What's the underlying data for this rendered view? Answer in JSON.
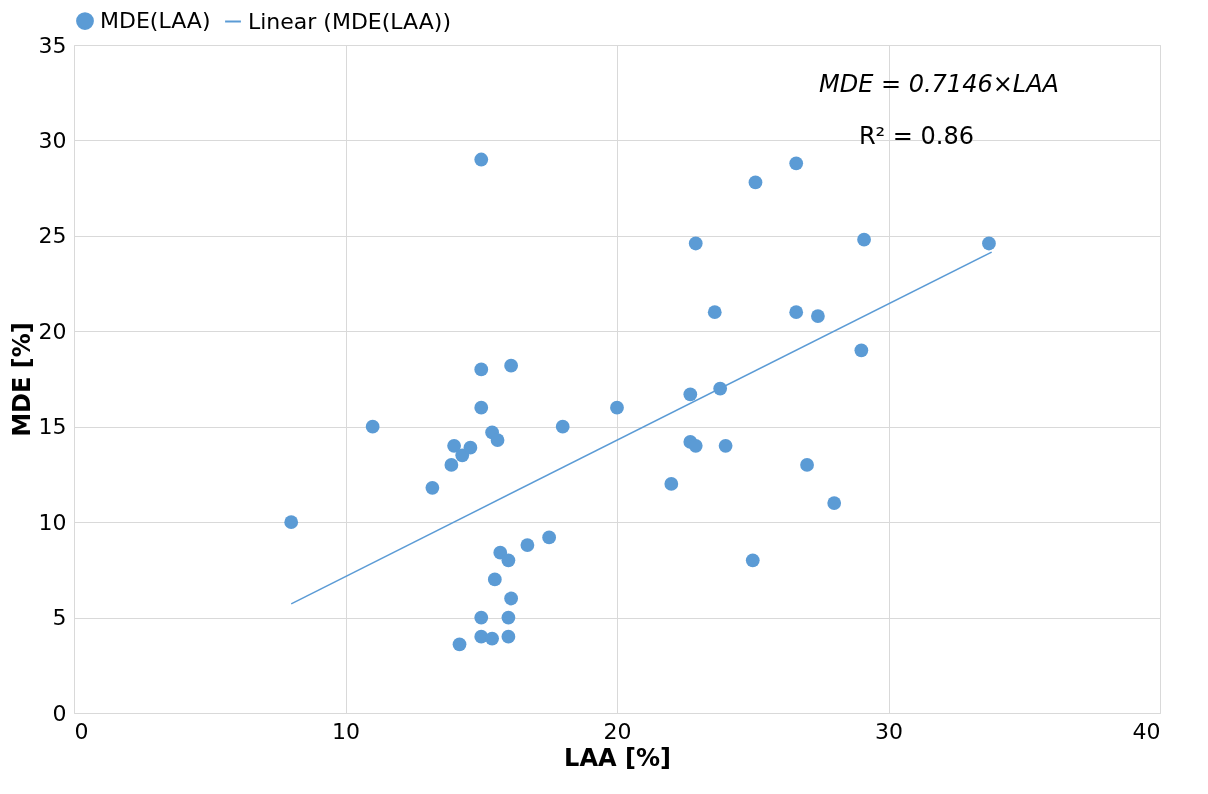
{
  "chart_data": {
    "type": "scatter",
    "xlabel": "LAA [%]",
    "ylabel": "MDE [%]",
    "xlim": [
      0,
      40
    ],
    "xticks": [
      0,
      10,
      20,
      30,
      40
    ],
    "ylim": [
      0,
      35
    ],
    "yticks": [
      0,
      5,
      10,
      15,
      20,
      25,
      30,
      35
    ],
    "grid": true,
    "legend": "top left",
    "marker": "circle",
    "annotations": [
      "MDE = 0.7146×LAA",
      "R² = 0.86"
    ],
    "series": [
      {
        "name": "MDE(LAA)",
        "color": "#5b9bd5",
        "x": [
          8.0,
          11.0,
          13.2,
          14.0,
          13.9,
          14.3,
          14.6,
          15.0,
          15.0,
          15.0,
          15.4,
          15.6,
          16.1,
          14.2,
          15.0,
          15.0,
          15.4,
          16.0,
          16.0,
          16.1,
          15.5,
          15.7,
          16.0,
          16.7,
          17.5,
          18.0,
          20.0,
          22.0,
          22.7,
          22.7,
          22.9,
          22.9,
          23.6,
          23.8,
          24.0,
          25.0,
          25.1,
          26.6,
          26.6,
          27.0,
          27.4,
          28.0,
          29.0,
          29.1,
          33.7
        ],
        "values": [
          10.0,
          15.0,
          11.8,
          14.0,
          13.0,
          13.5,
          13.9,
          29.0,
          18.0,
          16.0,
          14.7,
          14.3,
          18.2,
          3.6,
          5.0,
          4.0,
          3.9,
          4.0,
          5.0,
          6.0,
          7.0,
          8.4,
          8.0,
          8.8,
          9.2,
          15.0,
          16.0,
          12.0,
          16.7,
          14.2,
          14.0,
          24.6,
          21.0,
          17.0,
          14.0,
          8.0,
          27.8,
          28.8,
          21.0,
          13.0,
          20.8,
          11.0,
          19.0,
          24.8,
          24.6
        ]
      },
      {
        "name": "Linear (MDE(LAA))",
        "type": "line",
        "color": "#5b9bd5",
        "line_style": "solid",
        "marker": "none",
        "x": [
          8.0,
          33.8
        ],
        "values": [
          5.72,
          24.15
        ]
      }
    ]
  }
}
